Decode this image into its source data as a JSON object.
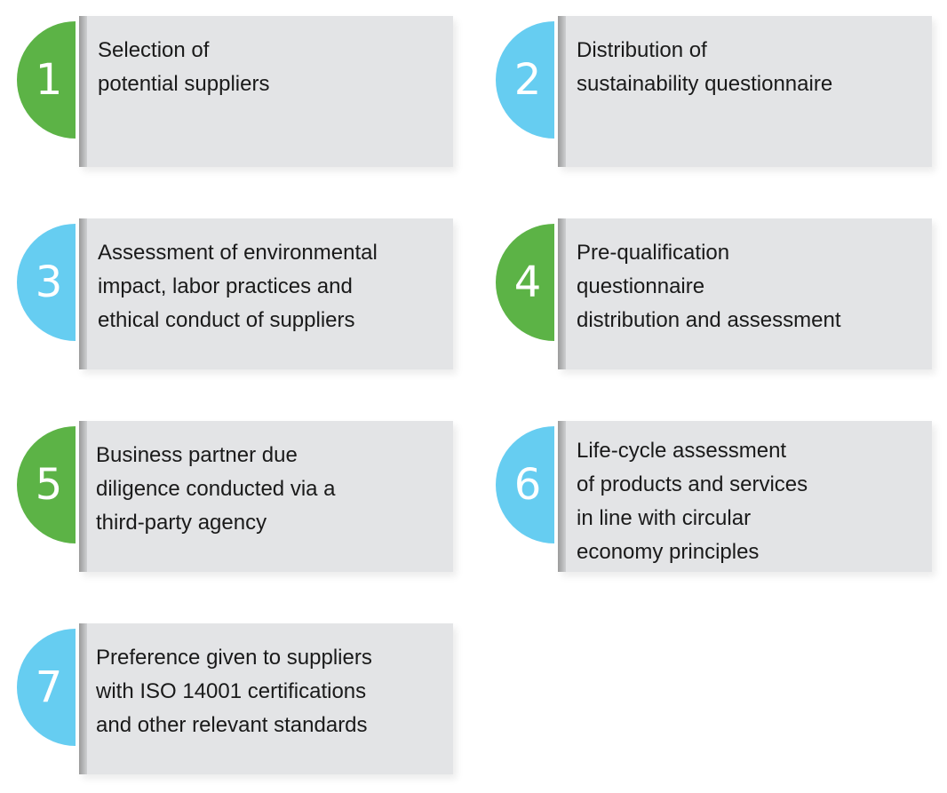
{
  "colors": {
    "green": "#5cb346",
    "blue": "#66cdf1",
    "card": "#e3e4e6",
    "text": "#1a1a1a"
  },
  "steps": [
    {
      "number": "1",
      "color": "green",
      "text": "Selection of\npotential suppliers"
    },
    {
      "number": "2",
      "color": "blue",
      "text": "Distribution of\nsustainability questionnaire"
    },
    {
      "number": "3",
      "color": "blue",
      "text": "Assessment of environmental\nimpact, labor practices and\nethical conduct of suppliers"
    },
    {
      "number": "4",
      "color": "green",
      "text": "Pre-qualification\nquestionnaire\ndistribution and assessment"
    },
    {
      "number": "5",
      "color": "green",
      "text": "Business partner due\ndiligence conducted via a\nthird-party agency"
    },
    {
      "number": "6",
      "color": "blue",
      "text": "Life-cycle assessment\nof products and services\nin line with circular\neconomy principles"
    },
    {
      "number": "7",
      "color": "blue",
      "text": "Preference given to suppliers\nwith ISO 14001 certifications\nand other relevant standards"
    }
  ]
}
